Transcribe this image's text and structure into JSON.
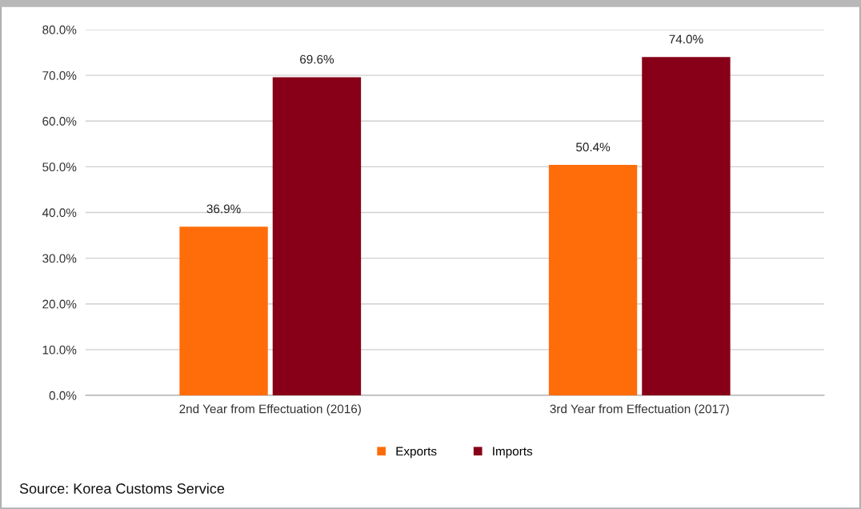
{
  "chart_data": {
    "type": "bar",
    "categories": [
      "2nd Year from Effectuation (2016)",
      "3rd Year from Effectuation (2017)"
    ],
    "series": [
      {
        "name": "Exports",
        "color": "#ff6d0a",
        "values": [
          36.9,
          50.4
        ],
        "value_labels": [
          "36.9%",
          "50.4%"
        ]
      },
      {
        "name": "Imports",
        "color": "#870017",
        "values": [
          69.6,
          74.0
        ],
        "value_labels": [
          "69.6%",
          "74.0%"
        ]
      }
    ],
    "ylim": [
      0,
      80
    ],
    "yticks": [
      {
        "value": 0,
        "label": "0.0%"
      },
      {
        "value": 10,
        "label": "10.0%"
      },
      {
        "value": 20,
        "label": "20.0%"
      },
      {
        "value": 30,
        "label": "30.0%"
      },
      {
        "value": 40,
        "label": "40.0%"
      },
      {
        "value": 50,
        "label": "50.0%"
      },
      {
        "value": 60,
        "label": "60.0%"
      },
      {
        "value": 70,
        "label": "70.0%"
      },
      {
        "value": 80,
        "label": "80.0%"
      }
    ],
    "grid": "y",
    "legend": "bottom",
    "annotations": [
      "Source: Korea Customs Service"
    ]
  }
}
